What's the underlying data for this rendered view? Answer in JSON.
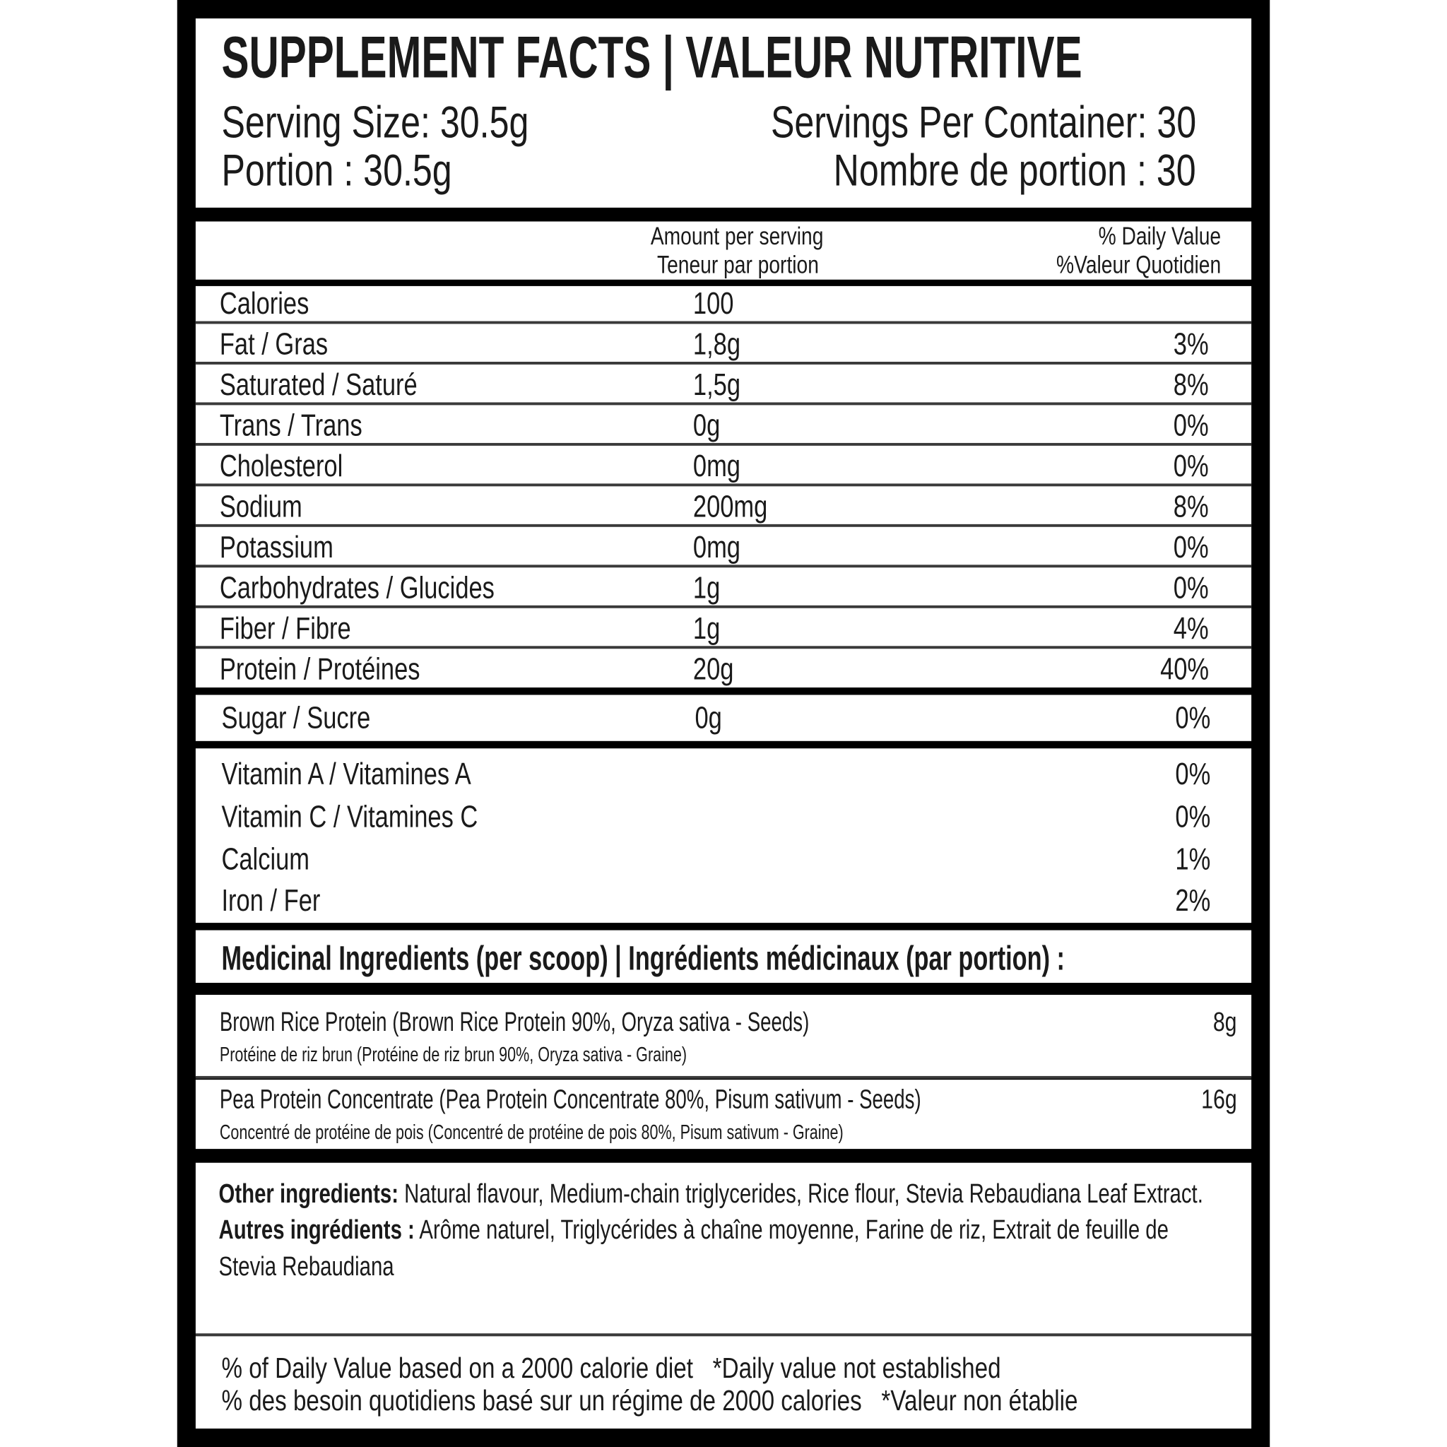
{
  "title": "SUPPLEMENT FACTS | VALEUR NUTRITIVE",
  "serving": {
    "size_en": "Serving Size: 30.5g",
    "size_fr": "Portion : 30.5g",
    "per_container_en": "Servings Per Container: 30",
    "per_container_fr": "Nombre de portion : 30"
  },
  "table_header": {
    "amount_en": "Amount per serving",
    "amount_fr": "Teneur par portion",
    "dv_en": "% Daily Value",
    "dv_fr": "%Valeur Quotidien"
  },
  "nutrients": [
    {
      "name": "Calories",
      "amount": "100",
      "dv": ""
    },
    {
      "name": "Fat / Gras",
      "amount": "1,8g",
      "dv": "3%"
    },
    {
      "name": "Saturated / Saturé",
      "amount": "1,5g",
      "dv": "8%"
    },
    {
      "name": "Trans / Trans",
      "amount": "0g",
      "dv": "0%"
    },
    {
      "name": "Cholesterol",
      "amount": "0mg",
      "dv": "0%"
    },
    {
      "name": "Sodium",
      "amount": "200mg",
      "dv": "8%"
    },
    {
      "name": "Potassium",
      "amount": "0mg",
      "dv": "0%"
    },
    {
      "name": "Carbohydrates / Glucides",
      "amount": "1g",
      "dv": "0%"
    },
    {
      "name": "Fiber / Fibre",
      "amount": "1g",
      "dv": "4%"
    },
    {
      "name": "Protein / Protéines",
      "amount": "20g",
      "dv": "40%"
    }
  ],
  "sugar": {
    "name": "Sugar / Sucre",
    "amount": "0g",
    "dv": "0%"
  },
  "vitamins": [
    {
      "name": "Vitamin A / Vitamines A",
      "dv": "0%"
    },
    {
      "name": "Vitamin C / Vitamines C",
      "dv": "0%"
    },
    {
      "name": "Calcium",
      "dv": "1%"
    },
    {
      "name": "Iron / Fer",
      "dv": "2%"
    }
  ],
  "medicinal": {
    "heading": "Medicinal Ingredients (per scoop) | Ingrédients médicinaux (par portion) :",
    "items": [
      {
        "name": "Brown Rice Protein",
        "detail": "(Brown Rice Protein 90%, Oryza sativa - Seeds)",
        "amount": "8g",
        "fr": "Protéine de riz brun  (Protéine de riz brun 90%, Oryza sativa - Graine)"
      },
      {
        "name": "Pea Protein Concentrate",
        "detail": "(Pea Protein Concentrate 80%, Pisum sativum - Seeds)",
        "amount": "16g",
        "fr": "Concentré de protéine de pois (Concentré de protéine de pois 80%, Pisum sativum - Graine)"
      }
    ]
  },
  "other": {
    "label_en": "Other ingredients:",
    "text_en": "Natural flavour, Medium-chain triglycerides, Rice flour, Stevia Rebaudiana Leaf Extract.",
    "label_fr": "Autres ingrédients  :",
    "text_fr": "Arôme naturel, Triglycérides à chaîne moyenne, Farine de riz, Extrait de feuille de Stevia Rebaudiana"
  },
  "footer": {
    "line_en": "% of Daily Value based on a 2000 calorie diet   *Daily value not established",
    "line_fr": "% des besoin quotidiens basé sur un régime de 2000 calories   *Valeur non établie"
  }
}
